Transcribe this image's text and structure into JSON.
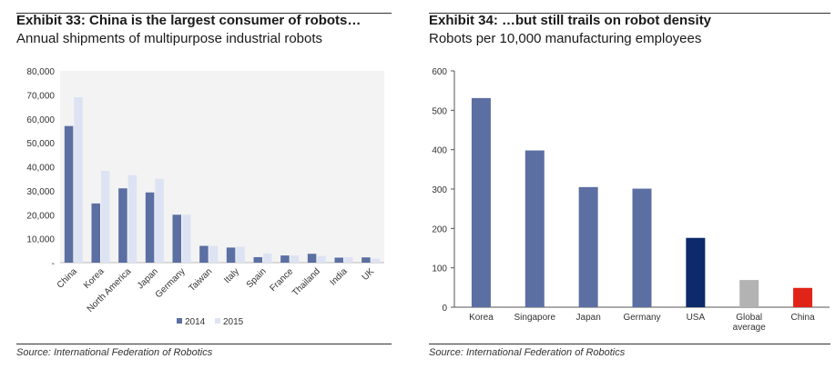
{
  "exhibits": [
    {
      "title": "Exhibit 33: China is the largest consumer of robots…",
      "subtitle": "Annual shipments of multipurpose industrial robots",
      "source": "Source: International Federation of Robotics",
      "chart_data": {
        "type": "bar",
        "categories": [
          "China",
          "Korea",
          "North America",
          "Japan",
          "Germany",
          "Taiwan",
          "Italy",
          "Spain",
          "France",
          "Thailand",
          "India",
          "UK"
        ],
        "series": [
          {
            "name": "2014",
            "color": "#5b6fa3",
            "values": [
              57000,
              24700,
              31000,
              29300,
              20000,
              7000,
              6300,
              2300,
              3000,
              3700,
              2100,
              2200
            ]
          },
          {
            "name": "2015",
            "color": "#dde3f2",
            "values": [
              69000,
              38300,
              36500,
              35000,
              20000,
              7000,
              6600,
              3800,
              3000,
              2800,
              2300,
              1700
            ]
          }
        ],
        "ylim": [
          0,
          80000
        ],
        "yticks": [
          0,
          10000,
          20000,
          30000,
          40000,
          50000,
          60000,
          70000,
          80000
        ],
        "ytick_labels": [
          "-",
          "10,000",
          "20,000",
          "30,000",
          "40,000",
          "50,000",
          "60,000",
          "70,000",
          "80,000"
        ],
        "legend": "bottom-center",
        "grid": false
      }
    },
    {
      "title": "Exhibit 34: …but still trails on robot density",
      "subtitle": "Robots per 10,000 manufacturing employees",
      "source": "Source: International Federation of Robotics",
      "chart_data": {
        "type": "bar",
        "categories": [
          "Korea",
          "Singapore",
          "Japan",
          "Germany",
          "USA",
          "Global average",
          "China"
        ],
        "values": [
          531,
          398,
          305,
          301,
          176,
          69,
          49
        ],
        "colors": [
          "#5b6fa3",
          "#5b6fa3",
          "#5b6fa3",
          "#5b6fa3",
          "#0d2a6b",
          "#b3b3b3",
          "#e02418"
        ],
        "ylim": [
          0,
          600
        ],
        "yticks": [
          0,
          100,
          200,
          300,
          400,
          500,
          600
        ],
        "ytick_labels": [
          "0",
          "100",
          "200",
          "300",
          "400",
          "500",
          "600"
        ],
        "grid": false
      }
    }
  ]
}
